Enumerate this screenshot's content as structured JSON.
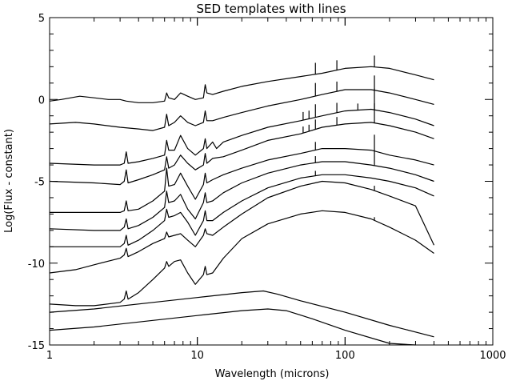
{
  "chart_data": {
    "type": "line",
    "title": "SED templates with lines",
    "xlabel": "Wavelength (microns)",
    "ylabel": "Log(Flux - constant)",
    "xscale": "log",
    "xlim": [
      1,
      1000
    ],
    "ylim": [
      -15,
      5
    ],
    "grid": false,
    "legend": "none",
    "x_ticks": [
      {
        "value": 1,
        "label": "1"
      },
      {
        "value": 10,
        "label": "10"
      },
      {
        "value": 100,
        "label": "100"
      },
      {
        "value": 1000,
        "label": "1000"
      }
    ],
    "y_ticks": [
      {
        "value": 5,
        "label": "5"
      },
      {
        "value": 0,
        "label": "0"
      },
      {
        "value": -5,
        "label": "-5"
      },
      {
        "value": -10,
        "label": "-10"
      },
      {
        "value": -15,
        "label": "-15"
      }
    ],
    "series": [
      {
        "points": [
          [
            1,
            -0.1
          ],
          [
            1.2,
            0
          ],
          [
            1.6,
            0.2
          ],
          [
            2,
            0.1
          ],
          [
            2.5,
            0
          ],
          [
            3,
            0
          ],
          [
            3.3,
            -0.1
          ],
          [
            4,
            -0.2
          ],
          [
            5,
            -0.2
          ],
          [
            6,
            -0.1
          ],
          [
            6.2,
            0.4
          ],
          [
            6.4,
            0.1
          ],
          [
            7,
            0
          ],
          [
            7.7,
            0.4
          ],
          [
            8.6,
            0.2
          ],
          [
            9.7,
            0
          ],
          [
            11,
            0.1
          ],
          [
            11.3,
            0.9
          ],
          [
            11.6,
            0.4
          ],
          [
            12.7,
            0.3
          ],
          [
            15,
            0.5
          ],
          [
            20,
            0.8
          ],
          [
            30,
            1.1
          ],
          [
            50,
            1.4
          ],
          [
            70,
            1.6
          ],
          [
            100,
            1.9
          ],
          [
            150,
            2
          ],
          [
            200,
            1.9
          ],
          [
            300,
            1.5
          ],
          [
            400,
            1.2
          ]
        ],
        "lines": [
          [
            63,
            0.7
          ],
          [
            88,
            0.6
          ],
          [
            158,
            0.7
          ]
        ]
      },
      {
        "points": [
          [
            1,
            -1.5
          ],
          [
            1.5,
            -1.4
          ],
          [
            2,
            -1.5
          ],
          [
            3,
            -1.7
          ],
          [
            4,
            -1.8
          ],
          [
            5,
            -1.9
          ],
          [
            6,
            -1.7
          ],
          [
            6.2,
            -0.9
          ],
          [
            6.4,
            -1.6
          ],
          [
            7,
            -1.4
          ],
          [
            7.7,
            -1
          ],
          [
            8.6,
            -1.4
          ],
          [
            9.7,
            -1.6
          ],
          [
            11,
            -1.4
          ],
          [
            11.3,
            -0.7
          ],
          [
            11.6,
            -1.3
          ],
          [
            12.7,
            -1.3
          ],
          [
            15,
            -1.1
          ],
          [
            20,
            -0.8
          ],
          [
            30,
            -0.4
          ],
          [
            50,
            0
          ],
          [
            70,
            0.3
          ],
          [
            100,
            0.6
          ],
          [
            150,
            0.6
          ],
          [
            200,
            0.4
          ],
          [
            300,
            0
          ],
          [
            400,
            -0.3
          ]
        ],
        "lines": [
          [
            63,
            0.8
          ],
          [
            88,
            0.6
          ],
          [
            158,
            0.9
          ]
        ]
      },
      {
        "points": [
          [
            1,
            -3.9
          ],
          [
            2,
            -4
          ],
          [
            3,
            -4
          ],
          [
            3.2,
            -3.9
          ],
          [
            3.3,
            -3.2
          ],
          [
            3.4,
            -3.9
          ],
          [
            4,
            -3.8
          ],
          [
            5,
            -3.6
          ],
          [
            6,
            -3.4
          ],
          [
            6.2,
            -2.5
          ],
          [
            6.4,
            -3.1
          ],
          [
            7,
            -3.1
          ],
          [
            7.7,
            -2.2
          ],
          [
            8.6,
            -3
          ],
          [
            9.7,
            -3.4
          ],
          [
            11,
            -3
          ],
          [
            11.3,
            -2.4
          ],
          [
            11.6,
            -3
          ],
          [
            12.7,
            -2.6
          ],
          [
            13.5,
            -3
          ],
          [
            15,
            -2.6
          ],
          [
            20,
            -2.2
          ],
          [
            30,
            -1.7
          ],
          [
            50,
            -1.3
          ],
          [
            70,
            -1
          ],
          [
            100,
            -0.7
          ],
          [
            150,
            -0.6
          ],
          [
            200,
            -0.8
          ],
          [
            300,
            -1.2
          ],
          [
            400,
            -1.6
          ]
        ],
        "lines": [
          [
            52,
            0.5
          ],
          [
            57,
            0.5
          ],
          [
            63,
            0.8
          ],
          [
            88,
            0.6
          ],
          [
            122,
            0.4
          ],
          [
            158,
            1.3
          ]
        ]
      },
      {
        "points": [
          [
            1,
            -5
          ],
          [
            2,
            -5.1
          ],
          [
            3,
            -5.2
          ],
          [
            3.2,
            -5
          ],
          [
            3.3,
            -4.3
          ],
          [
            3.4,
            -5.1
          ],
          [
            4,
            -4.9
          ],
          [
            5,
            -4.6
          ],
          [
            6,
            -4.3
          ],
          [
            6.2,
            -3.5
          ],
          [
            6.4,
            -4.2
          ],
          [
            7,
            -4
          ],
          [
            7.7,
            -3.4
          ],
          [
            8.6,
            -3.9
          ],
          [
            9.7,
            -4.3
          ],
          [
            11,
            -4
          ],
          [
            11.3,
            -3.3
          ],
          [
            11.6,
            -3.9
          ],
          [
            12.7,
            -3.6
          ],
          [
            15,
            -3.5
          ],
          [
            20,
            -3.1
          ],
          [
            30,
            -2.5
          ],
          [
            50,
            -2.1
          ],
          [
            70,
            -1.7
          ],
          [
            100,
            -1.5
          ],
          [
            150,
            -1.4
          ],
          [
            200,
            -1.6
          ],
          [
            300,
            -2
          ],
          [
            400,
            -2.4
          ]
        ],
        "lines": [
          [
            52,
            0.4
          ],
          [
            57,
            0.4
          ],
          [
            63,
            0.6
          ],
          [
            88,
            0.5
          ],
          [
            158,
            1.2
          ]
        ]
      },
      {
        "points": [
          [
            1,
            -6.9
          ],
          [
            2,
            -6.9
          ],
          [
            3,
            -6.9
          ],
          [
            3.2,
            -6.8
          ],
          [
            3.3,
            -6.2
          ],
          [
            3.4,
            -6.8
          ],
          [
            4,
            -6.7
          ],
          [
            5,
            -6.2
          ],
          [
            6,
            -5.6
          ],
          [
            6.2,
            -4.2
          ],
          [
            6.4,
            -5.3
          ],
          [
            7,
            -5.2
          ],
          [
            7.7,
            -4.5
          ],
          [
            8.6,
            -5.3
          ],
          [
            9.7,
            -6.1
          ],
          [
            11,
            -5.2
          ],
          [
            11.3,
            -4.5
          ],
          [
            11.6,
            -5.1
          ],
          [
            12.7,
            -4.9
          ],
          [
            15,
            -4.6
          ],
          [
            20,
            -4.2
          ],
          [
            30,
            -3.7
          ],
          [
            50,
            -3.3
          ],
          [
            70,
            -3
          ],
          [
            100,
            -3
          ],
          [
            150,
            -3.1
          ],
          [
            200,
            -3.4
          ],
          [
            300,
            -3.7
          ],
          [
            400,
            -4
          ]
        ],
        "lines": [
          [
            63,
            0.5
          ],
          [
            158,
            1
          ]
        ]
      },
      {
        "points": [
          [
            1,
            -7.9
          ],
          [
            2,
            -8
          ],
          [
            3,
            -8
          ],
          [
            3.2,
            -7.8
          ],
          [
            3.3,
            -7.3
          ],
          [
            3.4,
            -7.9
          ],
          [
            4,
            -7.7
          ],
          [
            5,
            -7.2
          ],
          [
            6,
            -6.6
          ],
          [
            6.2,
            -5.6
          ],
          [
            6.4,
            -6.3
          ],
          [
            7,
            -6.2
          ],
          [
            7.7,
            -5.8
          ],
          [
            8.6,
            -6.7
          ],
          [
            9.7,
            -7.3
          ],
          [
            11,
            -6.3
          ],
          [
            11.3,
            -5.7
          ],
          [
            11.6,
            -6.3
          ],
          [
            12.7,
            -6.2
          ],
          [
            15,
            -5.7
          ],
          [
            20,
            -5.1
          ],
          [
            30,
            -4.5
          ],
          [
            50,
            -4
          ],
          [
            70,
            -3.8
          ],
          [
            100,
            -3.8
          ],
          [
            150,
            -4
          ],
          [
            200,
            -4.2
          ],
          [
            300,
            -4.6
          ],
          [
            400,
            -5
          ]
        ],
        "lines": [
          [
            63,
            0.4
          ],
          [
            158,
            0.9
          ]
        ]
      },
      {
        "points": [
          [
            1,
            -9
          ],
          [
            2,
            -9
          ],
          [
            3,
            -9
          ],
          [
            3.2,
            -8.8
          ],
          [
            3.3,
            -8.3
          ],
          [
            3.4,
            -8.9
          ],
          [
            4,
            -8.6
          ],
          [
            5,
            -8
          ],
          [
            6,
            -7.4
          ],
          [
            6.2,
            -6.7
          ],
          [
            6.4,
            -7.2
          ],
          [
            7,
            -7.1
          ],
          [
            7.7,
            -6.9
          ],
          [
            8.6,
            -7.5
          ],
          [
            9.7,
            -8.3
          ],
          [
            11,
            -7.4
          ],
          [
            11.3,
            -6.8
          ],
          [
            11.6,
            -7.4
          ],
          [
            12.7,
            -7.4
          ],
          [
            15,
            -6.9
          ],
          [
            20,
            -6.2
          ],
          [
            30,
            -5.4
          ],
          [
            50,
            -4.8
          ],
          [
            70,
            -4.6
          ],
          [
            100,
            -4.6
          ],
          [
            150,
            -4.8
          ],
          [
            200,
            -5
          ],
          [
            300,
            -5.4
          ],
          [
            400,
            -5.9
          ]
        ],
        "lines": [
          [
            63,
            0.3
          ]
        ]
      },
      {
        "points": [
          [
            1,
            -10.6
          ],
          [
            1.5,
            -10.4
          ],
          [
            2,
            -10.1
          ],
          [
            3,
            -9.7
          ],
          [
            3.2,
            -9.5
          ],
          [
            3.3,
            -9.1
          ],
          [
            3.4,
            -9.6
          ],
          [
            4,
            -9.3
          ],
          [
            5,
            -8.8
          ],
          [
            6,
            -8.5
          ],
          [
            6.2,
            -8.1
          ],
          [
            6.4,
            -8.4
          ],
          [
            7,
            -8.3
          ],
          [
            7.7,
            -8.2
          ],
          [
            8.6,
            -8.6
          ],
          [
            9.7,
            -9
          ],
          [
            11,
            -8.3
          ],
          [
            11.3,
            -7.9
          ],
          [
            11.6,
            -8.2
          ],
          [
            12.7,
            -8.3
          ],
          [
            15,
            -7.8
          ],
          [
            20,
            -7
          ],
          [
            30,
            -6
          ],
          [
            50,
            -5.3
          ],
          [
            70,
            -5
          ],
          [
            100,
            -5.1
          ],
          [
            150,
            -5.5
          ],
          [
            200,
            -5.9
          ],
          [
            300,
            -6.5
          ],
          [
            400,
            -8.9
          ]
        ],
        "lines": [
          [
            158,
            0.3
          ]
        ]
      },
      {
        "points": [
          [
            1,
            -12.5
          ],
          [
            1.5,
            -12.6
          ],
          [
            2,
            -12.6
          ],
          [
            3,
            -12.4
          ],
          [
            3.2,
            -12.2
          ],
          [
            3.3,
            -11.7
          ],
          [
            3.4,
            -12.2
          ],
          [
            4,
            -11.8
          ],
          [
            5,
            -11
          ],
          [
            6,
            -10.3
          ],
          [
            6.2,
            -9.9
          ],
          [
            6.4,
            -10.2
          ],
          [
            7,
            -9.9
          ],
          [
            7.7,
            -9.8
          ],
          [
            8.6,
            -10.6
          ],
          [
            9.7,
            -11.3
          ],
          [
            11,
            -10.7
          ],
          [
            11.3,
            -10.2
          ],
          [
            11.6,
            -10.7
          ],
          [
            12.7,
            -10.6
          ],
          [
            15,
            -9.7
          ],
          [
            20,
            -8.5
          ],
          [
            30,
            -7.6
          ],
          [
            50,
            -7
          ],
          [
            70,
            -6.8
          ],
          [
            100,
            -6.9
          ],
          [
            150,
            -7.3
          ],
          [
            200,
            -7.8
          ],
          [
            300,
            -8.6
          ],
          [
            400,
            -9.4
          ]
        ],
        "lines": [
          [
            158,
            0.2
          ]
        ]
      },
      {
        "points": [
          [
            1,
            -13
          ],
          [
            2,
            -12.8
          ],
          [
            5,
            -12.4
          ],
          [
            10,
            -12.1
          ],
          [
            20,
            -11.8
          ],
          [
            28,
            -11.7
          ],
          [
            35,
            -11.9
          ],
          [
            50,
            -12.3
          ],
          [
            100,
            -13
          ],
          [
            200,
            -13.8
          ],
          [
            400,
            -14.5
          ]
        ],
        "lines": []
      },
      {
        "points": [
          [
            1,
            -14.1
          ],
          [
            2,
            -13.9
          ],
          [
            5,
            -13.5
          ],
          [
            10,
            -13.2
          ],
          [
            20,
            -12.9
          ],
          [
            30,
            -12.8
          ],
          [
            40,
            -12.9
          ],
          [
            60,
            -13.4
          ],
          [
            100,
            -14.1
          ],
          [
            200,
            -14.9
          ],
          [
            300,
            -15
          ]
        ],
        "lines": []
      }
    ]
  }
}
